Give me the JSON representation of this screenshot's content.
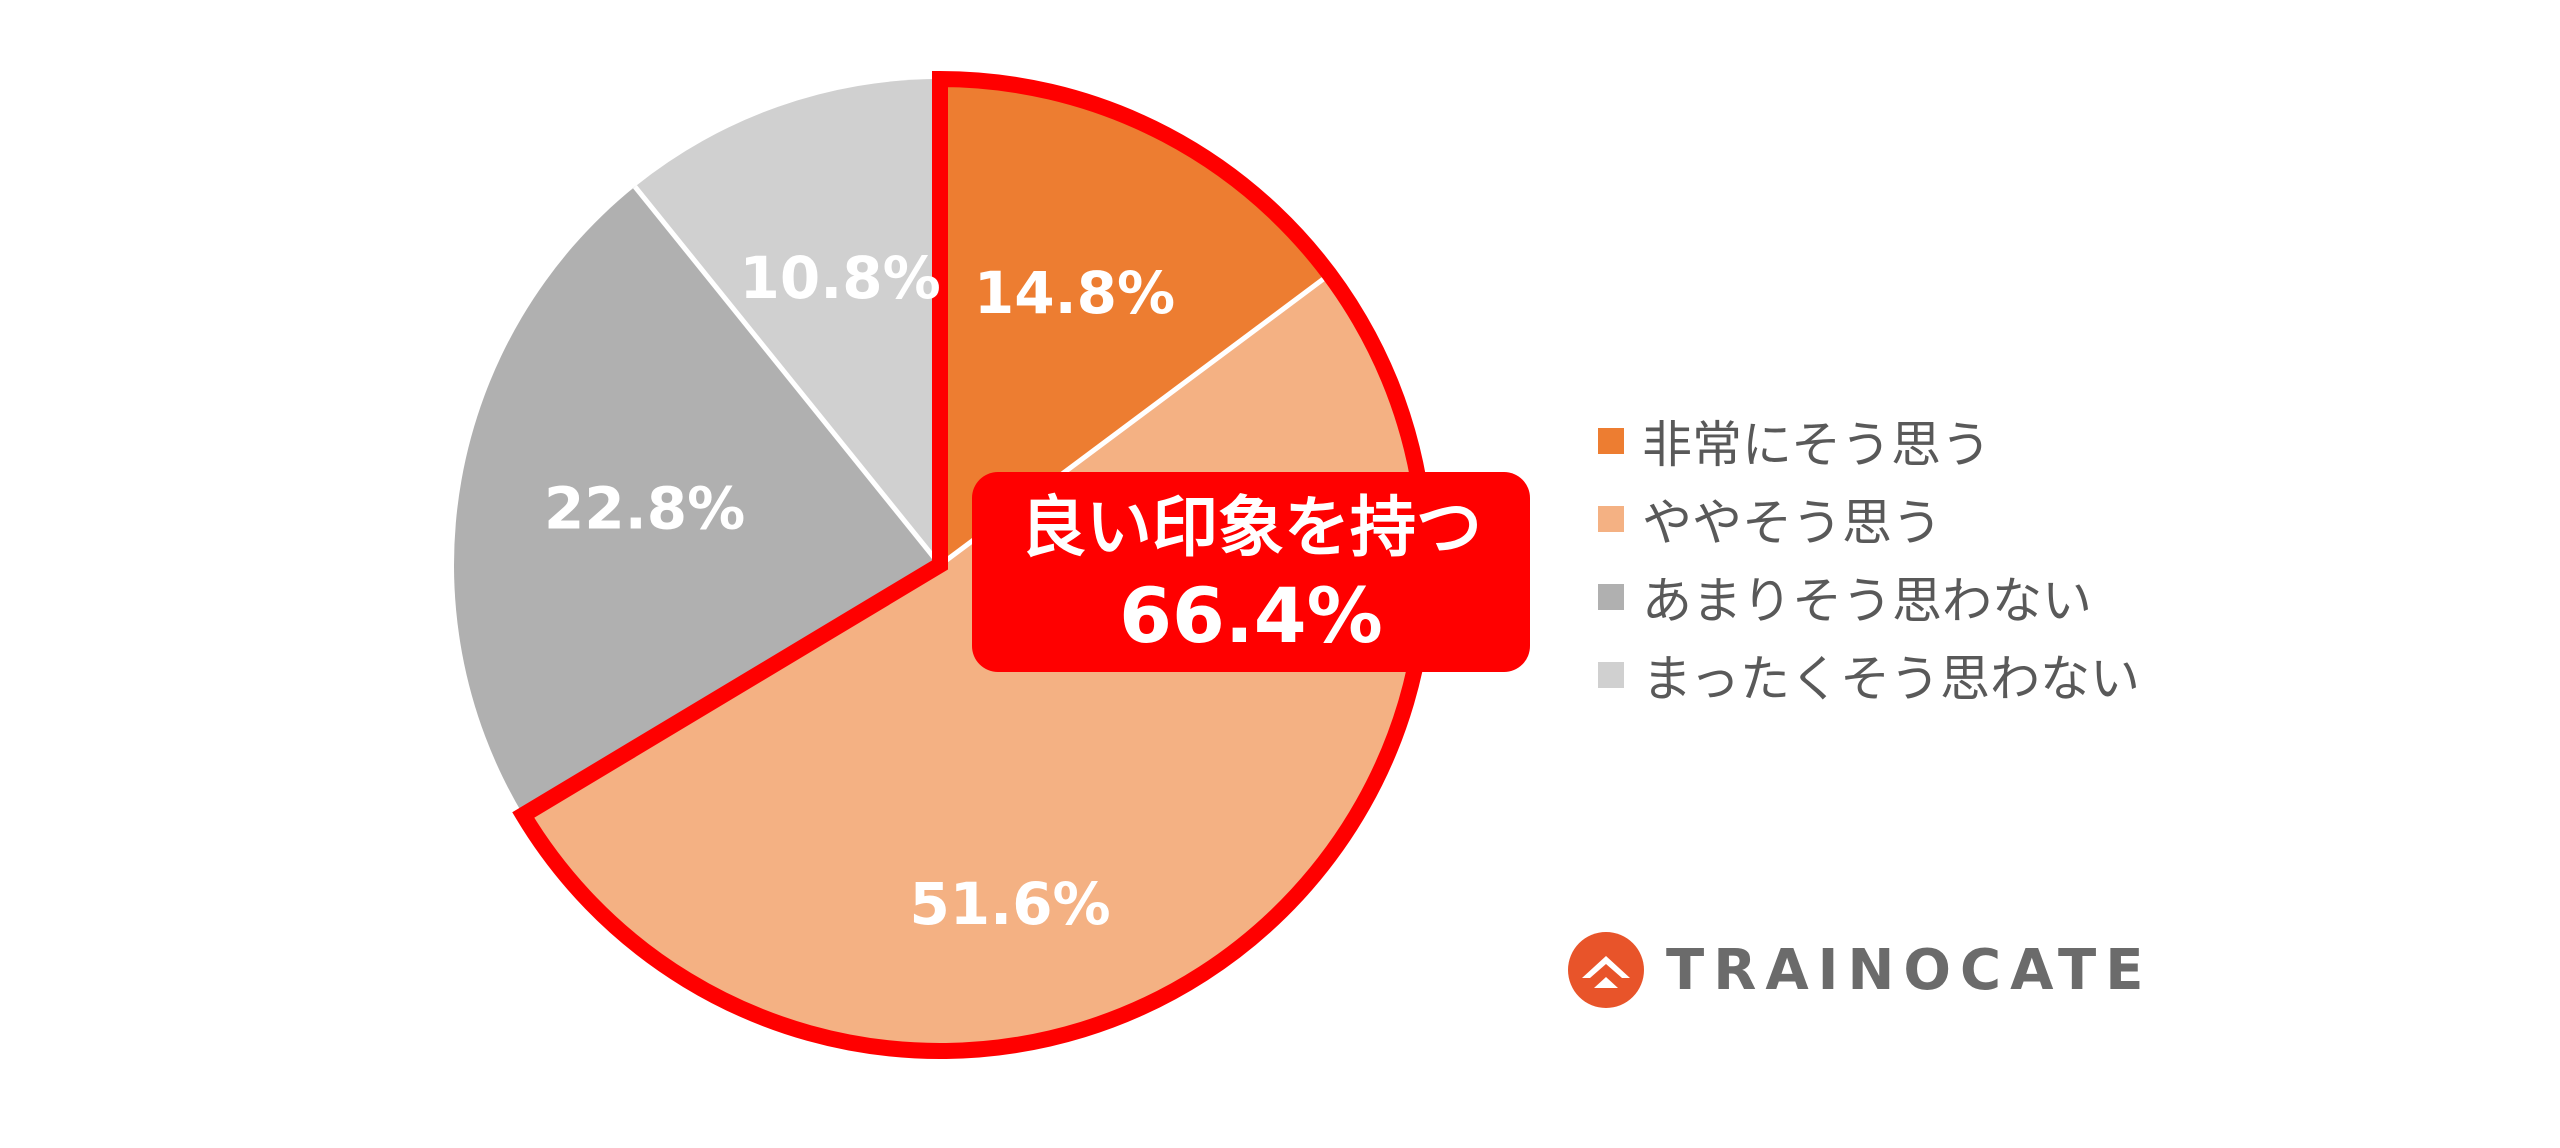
{
  "chart_data": {
    "type": "pie",
    "start_angle_deg": 0,
    "direction": "clockwise",
    "categories": [
      "非常にそう思う",
      "ややそう思う",
      "あまりそう思わない",
      "まったくそう思わない"
    ],
    "values": [
      14.8,
      51.6,
      22.8,
      10.8
    ],
    "value_labels": [
      "14.8%",
      "51.6%",
      "22.8%",
      "10.8%"
    ],
    "colors": [
      "#ed7d31",
      "#f4b183",
      "#b0b0b0",
      "#d0d0d0"
    ],
    "highlight": {
      "slices": [
        0,
        1
      ],
      "outline_color": "#ff0000",
      "label_line1": "良い印象を持つ",
      "label_line2": "66.4%"
    },
    "legend_position": "right"
  },
  "brand": {
    "name": "TRAINOCATE",
    "logo_color": "#e8542a"
  }
}
